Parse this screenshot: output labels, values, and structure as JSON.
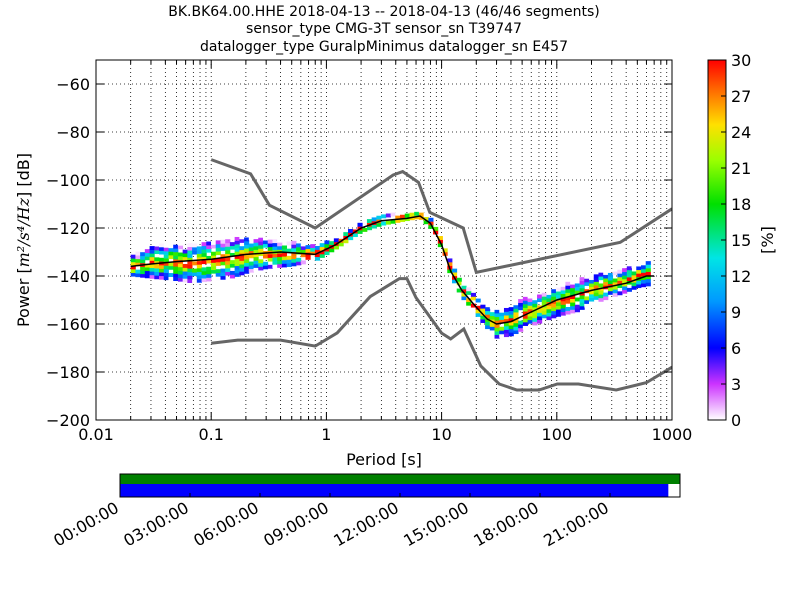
{
  "title_lines": [
    "BK.BK64.00.HHE   2018-04-13 -- 2018-04-13  (46/46 segments)",
    "sensor_type CMG-3T sensor_sn T39747",
    "datalogger_type GuralpMinimus datalogger_sn E457"
  ],
  "chart_data": {
    "type": "heatmap",
    "xlabel": "Period [s]",
    "ylabel_prefix": "Power [",
    "ylabel_math": "m²/s⁴/Hz",
    "ylabel_suffix": "] [dB]",
    "x_scale": "log",
    "xlim": [
      0.01,
      1000
    ],
    "ylim": [
      -200,
      -50
    ],
    "x_ticks": [
      {
        "v": 0.01,
        "label": "0.01"
      },
      {
        "v": 0.1,
        "label": "0.1"
      },
      {
        "v": 1,
        "label": "1"
      },
      {
        "v": 10,
        "label": "10"
      },
      {
        "v": 100,
        "label": "100"
      },
      {
        "v": 1000,
        "label": "1000"
      }
    ],
    "y_ticks": [
      {
        "v": -60,
        "label": "−60"
      },
      {
        "v": -80,
        "label": "−80"
      },
      {
        "v": -100,
        "label": "−100"
      },
      {
        "v": -120,
        "label": "−120"
      },
      {
        "v": -140,
        "label": "−140"
      },
      {
        "v": -160,
        "label": "−160"
      },
      {
        "v": -180,
        "label": "−180"
      },
      {
        "v": -200,
        "label": "−200"
      }
    ],
    "grid": true,
    "colorbar": {
      "label": "[%]",
      "min": 0,
      "max": 30,
      "ticks": [
        {
          "v": 0,
          "label": "0"
        },
        {
          "v": 3,
          "label": "3"
        },
        {
          "v": 6,
          "label": "6"
        },
        {
          "v": 9,
          "label": "9"
        },
        {
          "v": 12,
          "label": "12"
        },
        {
          "v": 15,
          "label": "15"
        },
        {
          "v": 18,
          "label": "18"
        },
        {
          "v": 21,
          "label": "21"
        },
        {
          "v": 24,
          "label": "24"
        },
        {
          "v": 27,
          "label": "27"
        },
        {
          "v": 30,
          "label": "30"
        }
      ]
    },
    "mode_curve": [
      [
        0.02,
        -136
      ],
      [
        0.03,
        -135
      ],
      [
        0.05,
        -134
      ],
      [
        0.1,
        -133
      ],
      [
        0.2,
        -131
      ],
      [
        0.4,
        -130
      ],
      [
        0.8,
        -131
      ],
      [
        1.2,
        -127
      ],
      [
        2,
        -120
      ],
      [
        3,
        -117
      ],
      [
        5,
        -116
      ],
      [
        6.5,
        -115
      ],
      [
        8,
        -118
      ],
      [
        10,
        -127
      ],
      [
        12,
        -138
      ],
      [
        15,
        -146
      ],
      [
        20,
        -153
      ],
      [
        25,
        -158
      ],
      [
        30,
        -160
      ],
      [
        40,
        -159
      ],
      [
        60,
        -155
      ],
      [
        100,
        -150
      ],
      [
        200,
        -146
      ],
      [
        400,
        -143
      ],
      [
        600,
        -140
      ],
      [
        700,
        -140
      ]
    ],
    "nhnm": [
      [
        0.1,
        -91.5
      ],
      [
        0.22,
        -97.4
      ],
      [
        0.32,
        -110.5
      ],
      [
        0.8,
        -120
      ],
      [
        3.8,
        -97.9
      ],
      [
        4.6,
        -96.5
      ],
      [
        6.3,
        -101
      ],
      [
        7.9,
        -113.5
      ],
      [
        15.4,
        -120
      ],
      [
        20,
        -138.5
      ],
      [
        354.8,
        -126
      ],
      [
        1000,
        -112
      ]
    ],
    "nlnm": [
      [
        0.1,
        -168
      ],
      [
        0.17,
        -166.7
      ],
      [
        0.4,
        -166.7
      ],
      [
        0.8,
        -169.2
      ],
      [
        1.24,
        -163.7
      ],
      [
        2.4,
        -148.6
      ],
      [
        4.3,
        -141.1
      ],
      [
        5,
        -141.1
      ],
      [
        6,
        -149
      ],
      [
        10,
        -163.8
      ],
      [
        12,
        -166.2
      ],
      [
        15.6,
        -162.1
      ],
      [
        21.9,
        -177.5
      ],
      [
        31.6,
        -185
      ],
      [
        45,
        -187.5
      ],
      [
        70,
        -187.5
      ],
      [
        101,
        -185
      ],
      [
        154,
        -185
      ],
      [
        328,
        -187.5
      ],
      [
        600,
        -184.4
      ],
      [
        1000,
        -178
      ]
    ],
    "psd_band": [
      [
        0.02,
        -140,
        -133,
        6
      ],
      [
        0.03,
        -141,
        -128,
        6
      ],
      [
        0.05,
        -142,
        -127,
        5
      ],
      [
        0.07,
        -143,
        -127,
        5
      ],
      [
        0.1,
        -142,
        -126,
        5
      ],
      [
        0.15,
        -141,
        -125,
        5
      ],
      [
        0.2,
        -139,
        -124,
        5
      ],
      [
        0.3,
        -137,
        -125,
        5
      ],
      [
        0.5,
        -136,
        -126,
        5
      ],
      [
        0.8,
        -134,
        -128,
        5
      ],
      [
        1.2,
        -129,
        -125,
        5
      ],
      [
        2,
        -122,
        -118,
        5
      ],
      [
        3,
        -119,
        -115,
        5
      ],
      [
        5,
        -117,
        -114,
        5
      ],
      [
        6.5,
        -116,
        -113,
        5
      ],
      [
        8,
        -120,
        -116,
        6
      ],
      [
        10,
        -129,
        -124,
        6
      ],
      [
        12,
        -140,
        -135,
        6
      ],
      [
        15,
        -149,
        -143,
        6
      ],
      [
        20,
        -156,
        -149,
        6
      ],
      [
        25,
        -162,
        -153,
        6
      ],
      [
        30,
        -166,
        -154,
        6
      ],
      [
        40,
        -165,
        -152,
        5
      ],
      [
        60,
        -161,
        -149,
        5
      ],
      [
        100,
        -157,
        -145,
        5
      ],
      [
        150,
        -155,
        -142,
        5
      ],
      [
        200,
        -152,
        -140,
        5
      ],
      [
        300,
        -149,
        -138,
        5
      ],
      [
        400,
        -147,
        -137,
        5
      ],
      [
        500,
        -145,
        -135,
        5
      ],
      [
        650,
        -144,
        -133,
        5
      ]
    ]
  },
  "timeline": {
    "labels": [
      "00:00:00",
      "03:00:00",
      "06:00:00",
      "09:00:00",
      "12:00:00",
      "15:00:00",
      "18:00:00",
      "21:00:00"
    ],
    "hour_range": [
      0,
      24
    ],
    "label_hours": [
      0,
      3,
      6,
      9,
      12,
      15,
      18,
      21
    ],
    "data_coverage_end_hour": 23.5,
    "colors": {
      "availability": "#008000",
      "data": "#0000ff"
    }
  }
}
